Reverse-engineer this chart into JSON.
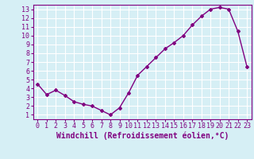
{
  "x": [
    0,
    1,
    2,
    3,
    4,
    5,
    6,
    7,
    8,
    9,
    10,
    11,
    12,
    13,
    14,
    15,
    16,
    17,
    18,
    19,
    20,
    21,
    22,
    23
  ],
  "y": [
    4.5,
    3.3,
    3.8,
    3.2,
    2.5,
    2.2,
    2.0,
    1.5,
    1.0,
    1.8,
    3.5,
    5.5,
    6.5,
    7.5,
    8.5,
    9.2,
    10.0,
    11.2,
    12.2,
    13.0,
    13.2,
    13.0,
    10.5,
    6.5
  ],
  "line_color": "#800080",
  "marker": "D",
  "marker_size": 2,
  "bg_color": "#d6eff5",
  "grid_color": "#ffffff",
  "xlabel": "Windchill (Refroidissement éolien,°C)",
  "xlabel_color": "#800080",
  "tick_color": "#800080",
  "spine_color": "#800080",
  "xlim": [
    -0.5,
    23.5
  ],
  "ylim": [
    0.5,
    13.5
  ],
  "yticks": [
    1,
    2,
    3,
    4,
    5,
    6,
    7,
    8,
    9,
    10,
    11,
    12,
    13
  ],
  "xticks": [
    0,
    1,
    2,
    3,
    4,
    5,
    6,
    7,
    8,
    9,
    10,
    11,
    12,
    13,
    14,
    15,
    16,
    17,
    18,
    19,
    20,
    21,
    22,
    23
  ],
  "font_size": 6,
  "xlabel_fontsize": 7,
  "line_width": 1.0
}
